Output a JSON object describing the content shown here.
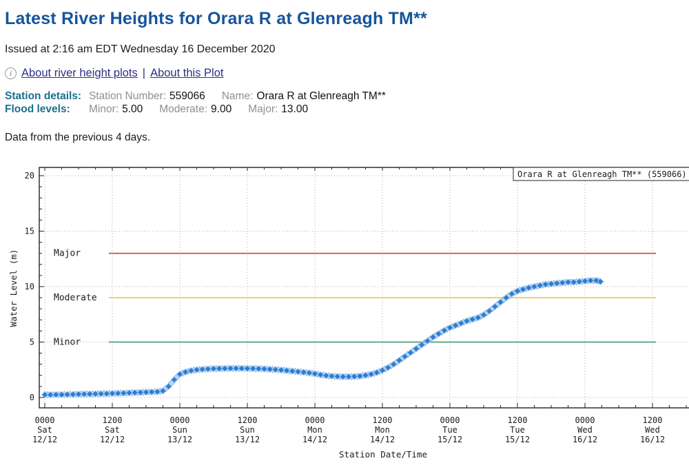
{
  "page": {
    "title": "Latest River Heights for Orara R at Glenreagh TM**",
    "issued": "Issued at 2:16 am EDT Wednesday 16 December 2020",
    "links": {
      "about_plots": "About river height plots",
      "separator": "|",
      "about_this": "About this Plot"
    },
    "station": {
      "heading": "Station details:",
      "number_label": "Station Number:",
      "number": "559066",
      "name_label": "Name:",
      "name": "Orara R at Glenreagh TM**"
    },
    "flood": {
      "heading": "Flood levels:",
      "minor_label": "Minor:",
      "minor": "5.00",
      "moderate_label": "Moderate:",
      "moderate": "9.00",
      "major_label": "Major:",
      "major": "13.00"
    },
    "note": "Data from the previous 4 days.",
    "info_icon_glyph": "i"
  },
  "chart_data": {
    "type": "scatter",
    "legend": "Orara R at Glenreagh TM** (559066)",
    "xlabel": "Station Date/Time",
    "ylabel": "Water Level (m)",
    "ylim": [
      0,
      20
    ],
    "yticks": [
      0,
      5,
      10,
      15,
      20
    ],
    "grid": "dotted at every major tick",
    "legend_position": "top-right boxed",
    "x_major_ticks": [
      {
        "time": "0000",
        "day": "Sat",
        "date": "12/12"
      },
      {
        "time": "1200",
        "day": "Sat",
        "date": "12/12"
      },
      {
        "time": "0000",
        "day": "Sun",
        "date": "13/12"
      },
      {
        "time": "1200",
        "day": "Sun",
        "date": "13/12"
      },
      {
        "time": "0000",
        "day": "Mon",
        "date": "14/12"
      },
      {
        "time": "1200",
        "day": "Mon",
        "date": "14/12"
      },
      {
        "time": "0000",
        "day": "Tue",
        "date": "15/12"
      },
      {
        "time": "1200",
        "day": "Tue",
        "date": "15/12"
      },
      {
        "time": "0000",
        "day": "Wed",
        "date": "16/12"
      },
      {
        "time": "1200",
        "day": "Wed",
        "date": "16/12"
      }
    ],
    "flood_lines": [
      {
        "label": "Major",
        "value": 13,
        "color": "#c4473a"
      },
      {
        "label": "Moderate",
        "value": 9,
        "color": "#e5c44c"
      },
      {
        "label": "Minor",
        "value": 5,
        "color": "#2e9566"
      }
    ],
    "series": [
      {
        "name": "Orara R at Glenreagh TM** (559066)",
        "marker": "diamond",
        "color": "#1e73cf",
        "light_color": "#8ab8e8",
        "x_unit": "hours since Sat 12/12 00:00",
        "points": [
          [
            0,
            0.25
          ],
          [
            1,
            0.25
          ],
          [
            2,
            0.26
          ],
          [
            3,
            0.26
          ],
          [
            4,
            0.27
          ],
          [
            5,
            0.28
          ],
          [
            6,
            0.3
          ],
          [
            7,
            0.31
          ],
          [
            8,
            0.32
          ],
          [
            9,
            0.33
          ],
          [
            10,
            0.34
          ],
          [
            11,
            0.35
          ],
          [
            12,
            0.37
          ],
          [
            13,
            0.38
          ],
          [
            14,
            0.4
          ],
          [
            15,
            0.42
          ],
          [
            16,
            0.44
          ],
          [
            17,
            0.46
          ],
          [
            18,
            0.48
          ],
          [
            19,
            0.5
          ],
          [
            20,
            0.52
          ],
          [
            21,
            0.6
          ],
          [
            22,
            1.0
          ],
          [
            23,
            1.6
          ],
          [
            24,
            2.1
          ],
          [
            25,
            2.3
          ],
          [
            26,
            2.42
          ],
          [
            27,
            2.5
          ],
          [
            28,
            2.54
          ],
          [
            29,
            2.57
          ],
          [
            30,
            2.6
          ],
          [
            31,
            2.61
          ],
          [
            32,
            2.62
          ],
          [
            33,
            2.63
          ],
          [
            34,
            2.63
          ],
          [
            35,
            2.63
          ],
          [
            36,
            2.62
          ],
          [
            37,
            2.61
          ],
          [
            38,
            2.6
          ],
          [
            39,
            2.58
          ],
          [
            40,
            2.55
          ],
          [
            41,
            2.52
          ],
          [
            42,
            2.48
          ],
          [
            43,
            2.43
          ],
          [
            44,
            2.38
          ],
          [
            45,
            2.33
          ],
          [
            46,
            2.28
          ],
          [
            47,
            2.22
          ],
          [
            48,
            2.15
          ],
          [
            49,
            2.05
          ],
          [
            50,
            1.98
          ],
          [
            51,
            1.93
          ],
          [
            52,
            1.9
          ],
          [
            53,
            1.88
          ],
          [
            54,
            1.88
          ],
          [
            55,
            1.9
          ],
          [
            56,
            1.93
          ],
          [
            57,
            2.0
          ],
          [
            58,
            2.1
          ],
          [
            59,
            2.25
          ],
          [
            60,
            2.45
          ],
          [
            61,
            2.7
          ],
          [
            62,
            3.0
          ],
          [
            63,
            3.35
          ],
          [
            64,
            3.7
          ],
          [
            65,
            4.05
          ],
          [
            66,
            4.4
          ],
          [
            67,
            4.75
          ],
          [
            68,
            5.1
          ],
          [
            69,
            5.45
          ],
          [
            70,
            5.75
          ],
          [
            71,
            6.05
          ],
          [
            72,
            6.3
          ],
          [
            73,
            6.5
          ],
          [
            74,
            6.7
          ],
          [
            75,
            6.9
          ],
          [
            76,
            7.05
          ],
          [
            77,
            7.2
          ],
          [
            78,
            7.45
          ],
          [
            79,
            7.8
          ],
          [
            80,
            8.2
          ],
          [
            81,
            8.6
          ],
          [
            82,
            9.0
          ],
          [
            83,
            9.35
          ],
          [
            84,
            9.6
          ],
          [
            85,
            9.75
          ],
          [
            86,
            9.9
          ],
          [
            87,
            10.0
          ],
          [
            88,
            10.1
          ],
          [
            89,
            10.2
          ],
          [
            90,
            10.25
          ],
          [
            91,
            10.3
          ],
          [
            92,
            10.35
          ],
          [
            93,
            10.4
          ],
          [
            94,
            10.4
          ],
          [
            95,
            10.45
          ],
          [
            96,
            10.5
          ],
          [
            97,
            10.55
          ],
          [
            98,
            10.55
          ],
          [
            98.75,
            10.45
          ]
        ]
      }
    ],
    "colors": {
      "grid": "#a8a8a8",
      "border": "#222222"
    }
  }
}
